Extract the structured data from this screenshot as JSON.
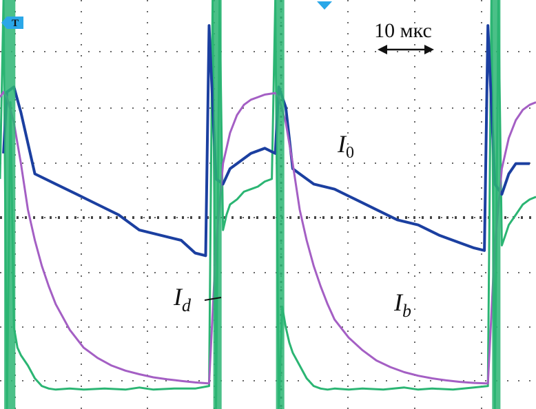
{
  "chart_data": {
    "type": "line",
    "title": "",
    "xlabel": "",
    "ylabel": "",
    "grid": true,
    "x_range_us": [
      0,
      76.9
    ],
    "y_range_div": [
      0,
      8
    ],
    "scale_bar": {
      "text": "10 мкс",
      "value_us": 10
    },
    "trigger_marker": {
      "text": "T"
    },
    "annotations": [
      {
        "base": "I",
        "sub": "0",
        "trace": "blue"
      },
      {
        "base": "I",
        "sub": "d",
        "trace": "green"
      },
      {
        "base": "I",
        "sub": "b",
        "trace": "purple"
      }
    ],
    "series": [
      {
        "name": "",
        "color": "#1b3fa0",
        "comment_trace": "blue",
        "x": [
          0.5,
          1,
          2,
          3,
          5,
          8,
          11,
          14,
          17,
          20,
          23,
          26,
          28,
          29.5,
          30,
          31,
          32,
          33,
          34,
          36,
          38,
          39.5,
          40,
          41,
          42,
          43,
          45,
          48,
          51,
          54,
          57,
          60,
          63,
          66,
          68,
          69.5,
          70,
          71,
          72,
          73,
          74,
          76
        ],
        "y": [
          5.0,
          6.2,
          6.3,
          5.8,
          4.6,
          4.4,
          4.2,
          4.0,
          3.8,
          3.5,
          3.4,
          3.3,
          3.05,
          3.0,
          7.5,
          4.5,
          4.4,
          4.7,
          4.8,
          5.0,
          5.1,
          5.0,
          6.3,
          5.9,
          4.7,
          4.6,
          4.4,
          4.3,
          4.1,
          3.9,
          3.7,
          3.6,
          3.4,
          3.25,
          3.15,
          3.1,
          7.5,
          4.4,
          4.2,
          4.6,
          4.8,
          4.8
        ]
      },
      {
        "name": "",
        "color": "#a45fc4",
        "comment_trace": "purple",
        "x": [
          0,
          0.5,
          1,
          2,
          3,
          4,
          5,
          6,
          7,
          8,
          10,
          12,
          14,
          16,
          18,
          20,
          22,
          24,
          26,
          28,
          30,
          31,
          32,
          33,
          34,
          35,
          36,
          37,
          38,
          39,
          39.5,
          40,
          41,
          42,
          43,
          44,
          45,
          46,
          47,
          48,
          50,
          52,
          54,
          56,
          58,
          60,
          62,
          64,
          66,
          68,
          70,
          71,
          72,
          73,
          74,
          75,
          76,
          76.9
        ],
        "y": [
          6.1,
          6.2,
          6.1,
          5.6,
          4.8,
          3.9,
          3.3,
          2.8,
          2.4,
          2.05,
          1.55,
          1.2,
          1.0,
          0.85,
          0.75,
          0.68,
          0.62,
          0.58,
          0.55,
          0.52,
          0.5,
          3.2,
          4.8,
          5.4,
          5.75,
          5.95,
          6.05,
          6.1,
          6.15,
          6.17,
          6.18,
          6.1,
          5.6,
          4.8,
          3.9,
          3.3,
          2.8,
          2.4,
          2.05,
          1.75,
          1.4,
          1.15,
          0.95,
          0.82,
          0.72,
          0.65,
          0.6,
          0.56,
          0.53,
          0.51,
          0.5,
          3.2,
          4.7,
          5.3,
          5.65,
          5.85,
          5.95,
          6.0
        ]
      },
      {
        "name": "",
        "color": "#2bb573",
        "comment_trace": "green",
        "x": [
          0,
          0.5,
          1,
          1.5,
          2,
          2.5,
          3,
          4,
          5,
          6,
          7,
          8,
          10,
          12,
          15,
          18,
          20,
          22,
          25,
          28,
          30,
          30.5,
          31,
          31.5,
          32,
          32.5,
          33,
          34,
          35,
          36,
          37,
          38,
          39,
          39.5,
          40,
          40.5,
          41,
          41.5,
          42,
          43,
          44,
          45,
          46,
          47,
          48,
          50,
          52,
          55,
          58,
          60,
          62,
          65,
          68,
          70,
          70.5,
          71,
          71.5,
          72,
          72.5,
          73,
          74,
          75,
          76,
          76.9
        ],
        "y": [
          4.5,
          8.0,
          0.0,
          6.0,
          1.6,
          1.2,
          1.05,
          0.85,
          0.6,
          0.45,
          0.4,
          0.38,
          0.4,
          0.38,
          0.4,
          0.38,
          0.42,
          0.38,
          0.4,
          0.4,
          0.45,
          8.0,
          0.0,
          8.0,
          3.5,
          3.8,
          4.0,
          4.1,
          4.25,
          4.3,
          4.35,
          4.45,
          4.5,
          8.0,
          0.0,
          2.0,
          1.6,
          1.3,
          1.1,
          0.85,
          0.6,
          0.45,
          0.4,
          0.38,
          0.4,
          0.38,
          0.4,
          0.38,
          0.42,
          0.38,
          0.4,
          0.38,
          0.42,
          0.45,
          8.0,
          0.0,
          8.0,
          3.2,
          3.4,
          3.6,
          3.8,
          4.0,
          4.1,
          4.15
        ]
      }
    ]
  }
}
